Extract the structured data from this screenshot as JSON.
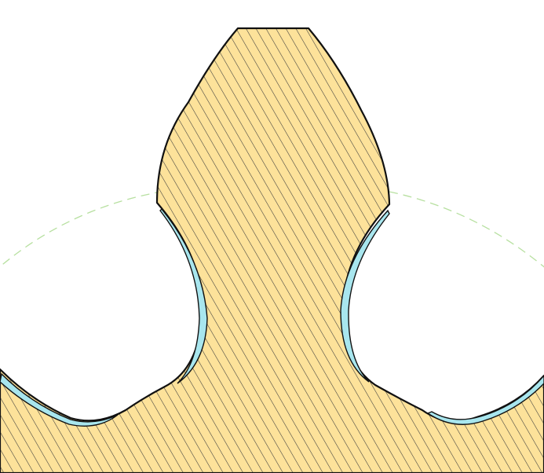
{
  "drawing": {
    "colors": {
      "background": "#ffffff",
      "material_fill": "#fde29a",
      "hatch_stroke": "#3a3a3a",
      "outline": "#111111",
      "clearance_fill": "#a8e6ee",
      "pitch_circle": "#b7e0a0"
    }
  }
}
